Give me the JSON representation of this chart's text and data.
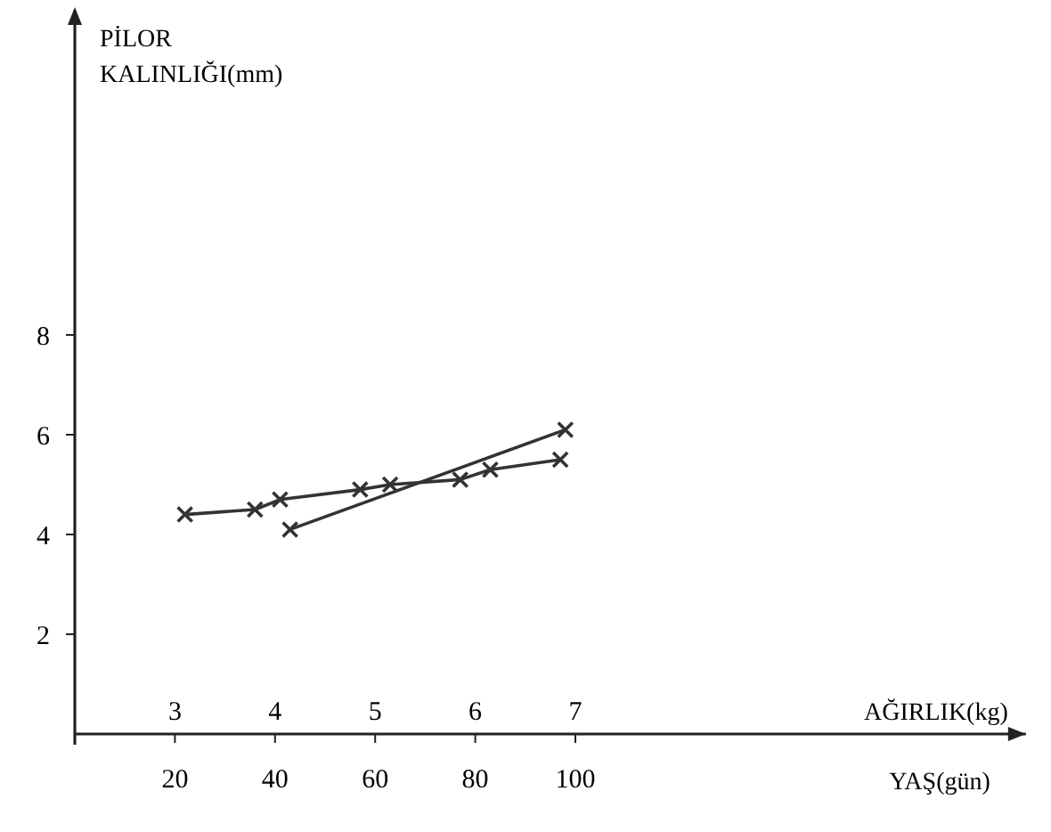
{
  "chart_data": {
    "type": "line",
    "ylabel": "PİLOR\nKALINLIĞI(mm)",
    "xlabel": "YAŞ(gün)",
    "x2label": "AĞIRLIK(kg)",
    "xlim": [
      0,
      190
    ],
    "xticks": [
      20,
      40,
      60,
      80,
      100
    ],
    "x2lim": [
      2,
      11.5
    ],
    "x2ticks": [
      3,
      4,
      5,
      6,
      7
    ],
    "ylim": [
      0,
      14.5
    ],
    "yticks": [
      2,
      4,
      6,
      8
    ],
    "grid": false,
    "marker": "cross",
    "line_style": "solid",
    "series": [
      {
        "color": "#333333",
        "x": [
          22,
          36,
          41,
          57,
          63,
          77,
          83,
          97
        ],
        "values": [
          4.4,
          4.5,
          4.7,
          4.9,
          5.0,
          5.1,
          5.3,
          5.5
        ]
      },
      {
        "color": "#333333",
        "x": [
          43,
          98
        ],
        "values": [
          4.1,
          6.1
        ]
      }
    ]
  }
}
